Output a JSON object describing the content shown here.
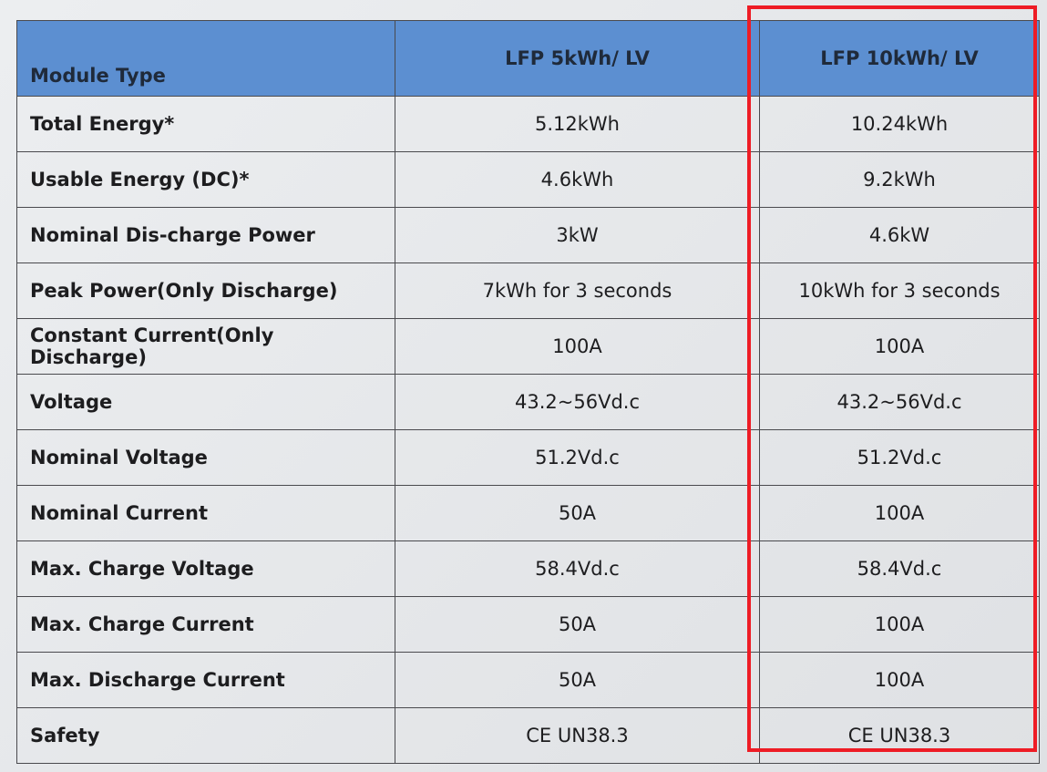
{
  "table": {
    "header": [
      "Module Type",
      "LFP 5kWh/ LV",
      "LFP 10kWh/ LV"
    ],
    "rows": [
      [
        "Total Energy*",
        "5.12kWh",
        "10.24kWh"
      ],
      [
        "Usable Energy (DC)*",
        "4.6kWh",
        "9.2kWh"
      ],
      [
        "Nominal Dis-charge Power",
        "3kW",
        "4.6kW"
      ],
      [
        "Peak Power(Only Discharge)",
        "7kWh for 3 seconds",
        "10kWh for 3 seconds"
      ],
      [
        "Constant Current(Only Discharge)",
        "100A",
        "100A"
      ],
      [
        "Voltage",
        "43.2~56Vd.c",
        "43.2~56Vd.c"
      ],
      [
        "Nominal Voltage",
        "51.2Vd.c",
        "51.2Vd.c"
      ],
      [
        "Nominal Current",
        "50A",
        "100A"
      ],
      [
        "Max. Charge Voltage",
        "58.4Vd.c",
        "58.4Vd.c"
      ],
      [
        "Max. Charge Current",
        "50A",
        "100A"
      ],
      [
        "Max. Discharge Current",
        "50A",
        "100A"
      ],
      [
        "Safety",
        "CE UN38.3",
        "CE UN38.3"
      ]
    ]
  }
}
